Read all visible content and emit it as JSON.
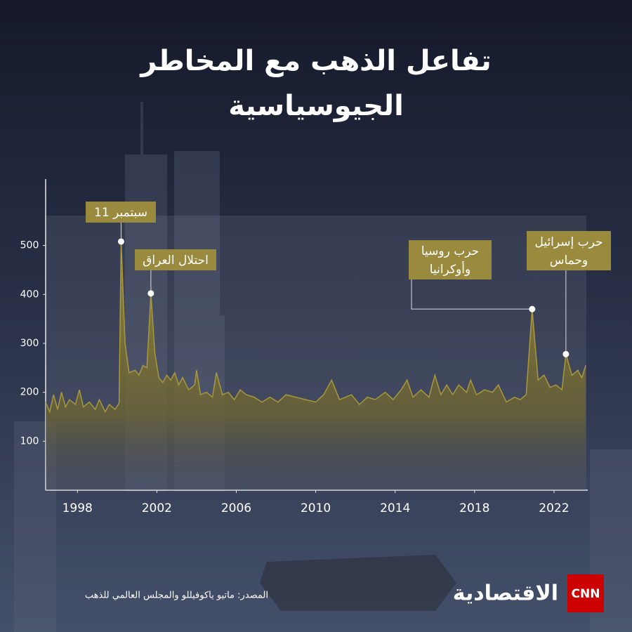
{
  "chart_data": {
    "type": "area",
    "title": "تفاعل الذهب مع المخاطر الجيوسياسية",
    "x": [
      1996.4,
      1996.6,
      1996.8,
      1997.0,
      1997.2,
      1997.4,
      1997.6,
      1997.9,
      1998.1,
      1998.3,
      1998.6,
      1998.9,
      1999.1,
      1999.4,
      1999.6,
      1999.9,
      2000.1,
      2000.2,
      2000.4,
      2000.6,
      2000.9,
      2001.1,
      2001.3,
      2001.5,
      2001.7,
      2001.9,
      2002.1,
      2002.3,
      2002.5,
      2002.7,
      2002.9,
      2003.1,
      2003.3,
      2003.6,
      2003.9,
      2004.0,
      2004.2,
      2004.5,
      2004.8,
      2005.0,
      2005.3,
      2005.6,
      2005.9,
      2006.2,
      2006.5,
      2006.9,
      2007.3,
      2007.7,
      2008.1,
      2008.5,
      2009.0,
      2009.5,
      2010.0,
      2010.4,
      2010.8,
      2011.2,
      2011.8,
      2012.2,
      2012.6,
      2013.0,
      2013.5,
      2013.9,
      2014.3,
      2014.6,
      2014.9,
      2015.3,
      2015.7,
      2016.0,
      2016.3,
      2016.6,
      2016.9,
      2017.2,
      2017.6,
      2017.8,
      2018.1,
      2018.5,
      2018.9,
      2019.2,
      2019.6,
      2020.0,
      2020.3,
      2020.6,
      2020.9,
      2021.2,
      2021.5,
      2021.8,
      2022.1,
      2022.4,
      2022.6,
      2022.9,
      2023.2,
      2023.4,
      2023.6
    ],
    "values": [
      180,
      160,
      195,
      165,
      200,
      170,
      185,
      175,
      205,
      170,
      180,
      165,
      185,
      160,
      175,
      165,
      178,
      508,
      300,
      240,
      245,
      235,
      255,
      250,
      402,
      280,
      230,
      220,
      235,
      225,
      240,
      215,
      230,
      205,
      215,
      245,
      195,
      200,
      190,
      240,
      195,
      200,
      185,
      205,
      195,
      190,
      180,
      190,
      180,
      195,
      190,
      185,
      180,
      195,
      225,
      185,
      195,
      175,
      190,
      185,
      200,
      185,
      205,
      225,
      190,
      205,
      190,
      235,
      195,
      215,
      195,
      215,
      200,
      225,
      195,
      205,
      200,
      215,
      180,
      190,
      185,
      195,
      370,
      225,
      235,
      210,
      215,
      205,
      278,
      235,
      245,
      230,
      255
    ],
    "color": "#a8983c",
    "xlim": [
      1996.4,
      2023.7
    ],
    "ylim": [
      0,
      640
    ],
    "xticks": [
      1998,
      2002,
      2006,
      2010,
      2014,
      2018,
      2022
    ],
    "yticks": [
      100,
      200,
      300,
      400,
      500
    ],
    "annotations": [
      {
        "text": [
          "11 سبتمبر"
        ],
        "x": 2000.2,
        "y": 508
      },
      {
        "text": [
          "احتلال العراق"
        ],
        "x": 2001.7,
        "y": 402
      },
      {
        "text": [
          "حرب روسيا",
          "وأوكرانيا"
        ],
        "x": 2020.9,
        "y": 370
      },
      {
        "text": [
          "حرب إسرائيل",
          "وحماس"
        ],
        "x": 2022.6,
        "y": 278
      }
    ],
    "source": "المصدر: ماتيو ياكوفيللو والمجلس العالمي للذهب"
  },
  "branding": {
    "logo": "CNN",
    "name": "الاقتصادية"
  }
}
